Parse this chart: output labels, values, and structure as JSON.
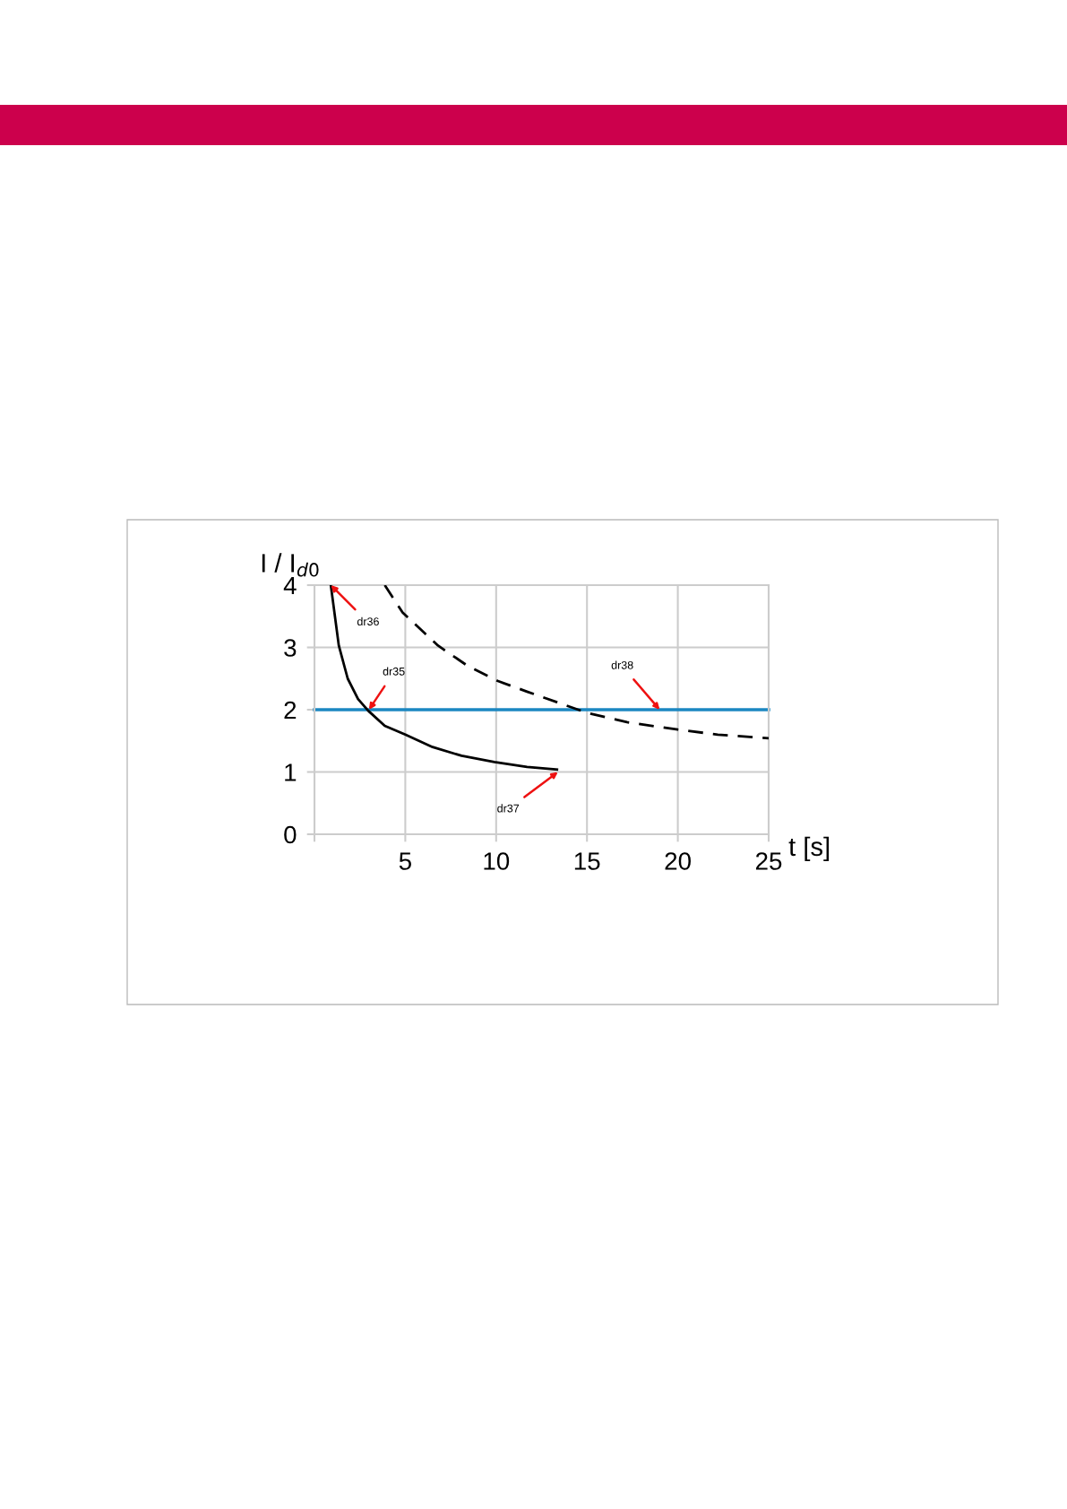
{
  "chart_data": {
    "type": "line",
    "xlabel": "t [s]",
    "ylabel": "I / I$_{d0}$",
    "xlim": [
      0,
      25
    ],
    "ylim": [
      0,
      4
    ],
    "xticks": [
      {
        "value": 0,
        "label": null
      },
      5,
      10,
      15,
      20,
      25
    ],
    "yticks": [
      0,
      1,
      2,
      3,
      4
    ],
    "grid": true,
    "legend": false,
    "marker": "none",
    "series": [
      {
        "color": "#000000",
        "line_style": "solid",
        "x": [
          0.9,
          1.34,
          1.83,
          2.4,
          2.97,
          3.87,
          5.0,
          6.5,
          8.1,
          9.9,
          11.7,
          13.35
        ],
        "values": [
          4.0,
          3.03,
          2.5,
          2.17,
          1.98,
          1.74,
          1.6,
          1.4,
          1.26,
          1.16,
          1.08,
          1.04
        ]
      },
      {
        "color": "#000000",
        "line_style": "dashed",
        "x": [
          3.87,
          4.85,
          6.8,
          8.45,
          10.1,
          11.7,
          13.35,
          15.0,
          17.2,
          20.0,
          22.2,
          25.0
        ],
        "values": [
          4.0,
          3.56,
          3.03,
          2.7,
          2.46,
          2.29,
          2.12,
          1.95,
          1.8,
          1.68,
          1.6,
          1.54
        ]
      }
    ],
    "ref_lines": [
      {
        "axis": "y",
        "value": 2,
        "color": "#1b87c1",
        "line_style": "solid"
      }
    ],
    "annotations": [
      {
        "text": "dr36",
        "x": 0.9,
        "y": 4.0
      },
      {
        "text": "dr35",
        "x": 3.0,
        "y": 2.0
      },
      {
        "text": "dr37",
        "x": 13.4,
        "y": 1.0
      },
      {
        "text": "dr38",
        "x": 19.0,
        "y": 2.0
      }
    ]
  }
}
